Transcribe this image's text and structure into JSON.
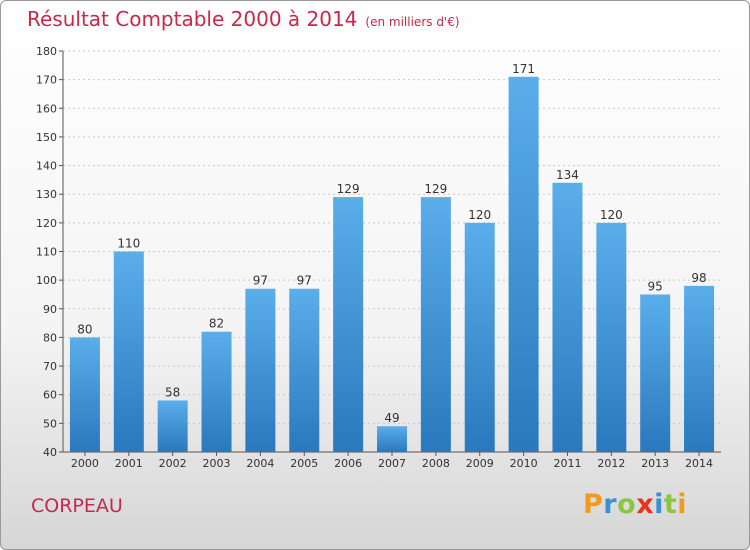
{
  "chart_data": {
    "type": "bar",
    "title": "Résultat Comptable 2000 à 2014",
    "subtitle": "(en milliers d'€)",
    "categories": [
      "2000",
      "2001",
      "2002",
      "2003",
      "2004",
      "2005",
      "2006",
      "2007",
      "2008",
      "2009",
      "2010",
      "2011",
      "2012",
      "2013",
      "2014"
    ],
    "values": [
      80,
      110,
      58,
      82,
      97,
      97,
      129,
      49,
      129,
      120,
      171,
      134,
      120,
      95,
      98
    ],
    "ylim": [
      40,
      180
    ],
    "yticks": [
      40,
      50,
      60,
      70,
      80,
      90,
      100,
      110,
      120,
      130,
      140,
      150,
      160,
      170,
      180
    ],
    "grid": true,
    "bar_color": "#3a8fd6",
    "title_color": "#c8284a"
  },
  "commune": "CORPEAU",
  "brand": {
    "letters": [
      "P",
      "r",
      "o",
      "x",
      "i",
      "t",
      "i"
    ],
    "colors": [
      "#f29a1d",
      "#3a8fd6",
      "#8cc63f",
      "#e8331c",
      "#3a8fd6",
      "#8cc63f",
      "#f29a1d"
    ]
  }
}
